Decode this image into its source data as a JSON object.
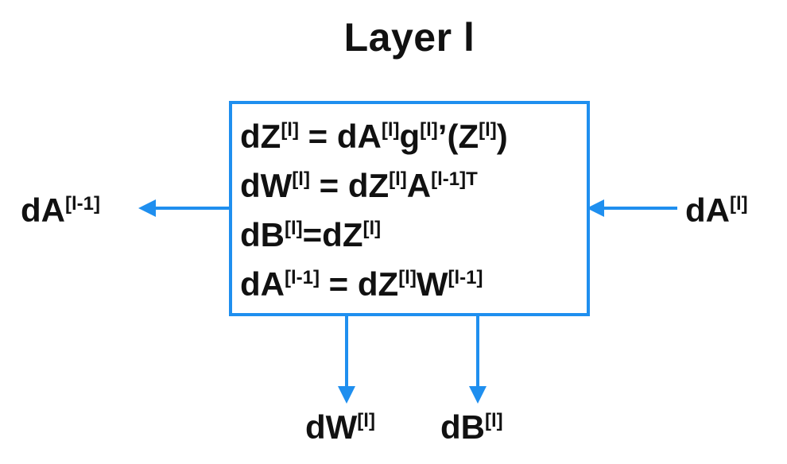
{
  "title": {
    "main": "Layer ",
    "index": "l"
  },
  "equations": [
    [
      {
        "t": "dZ"
      },
      {
        "s": "[l]"
      },
      {
        "t": " = dA"
      },
      {
        "s": "[l]"
      },
      {
        "t": "g"
      },
      {
        "s": "[l]"
      },
      {
        "t": "’(Z"
      },
      {
        "s": "[l]"
      },
      {
        "t": ")"
      }
    ],
    [
      {
        "t": "dW"
      },
      {
        "s": "[l]"
      },
      {
        "t": " = dZ"
      },
      {
        "s": "[l]"
      },
      {
        "t": "A"
      },
      {
        "s": "[l-1]T"
      }
    ],
    [
      {
        "t": "dB"
      },
      {
        "s": "[l]"
      },
      {
        "t": "=dZ"
      },
      {
        "s": "[l]"
      }
    ],
    [
      {
        "t": "dA"
      },
      {
        "s": "[l-1]"
      },
      {
        "t": " = dZ"
      },
      {
        "s": "[l]"
      },
      {
        "t": "W"
      },
      {
        "s": "[l-1]"
      }
    ]
  ],
  "labels": {
    "left": [
      {
        "t": "dA"
      },
      {
        "s": "[l-1]"
      }
    ],
    "right": [
      {
        "t": "dA"
      },
      {
        "s": "[l]"
      }
    ],
    "bottom_left": [
      {
        "t": "dW"
      },
      {
        "s": "[l]"
      }
    ],
    "bottom_right": [
      {
        "t": "dB"
      },
      {
        "s": "[l]"
      }
    ]
  },
  "colors": {
    "accent": "#1f8fef",
    "text": "#111111"
  }
}
